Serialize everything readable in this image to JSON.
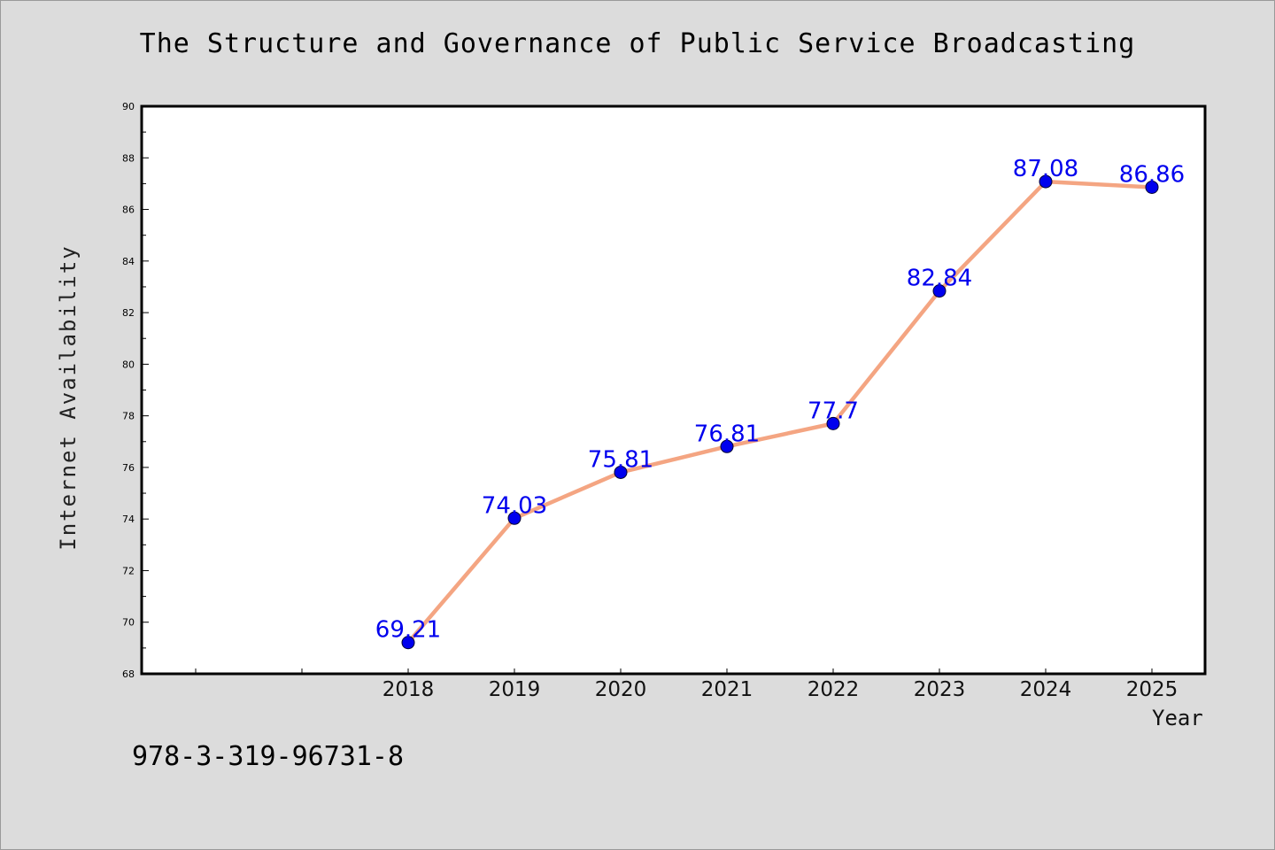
{
  "chart_data": {
    "type": "line",
    "title": "The Structure and Governance of Public Service Broadcasting",
    "xlabel": "Year",
    "ylabel": "Internet Availability",
    "categories": [
      "2018",
      "2019",
      "2020",
      "2021",
      "2022",
      "2023",
      "2024",
      "2025"
    ],
    "series": [
      {
        "values": [
          69.21,
          74.03,
          75.81,
          76.81,
          77.7,
          82.84,
          87.08,
          86.86
        ],
        "data_labels": [
          "69.21",
          "74.03",
          "75.81",
          "76.81",
          "77.7",
          "82.84",
          "87.08",
          "86.86"
        ]
      }
    ],
    "ylim": [
      68,
      90
    ],
    "yticks": [
      "68",
      "70",
      "72",
      "74",
      "76",
      "78",
      "80",
      "82",
      "84",
      "86",
      "88",
      "90"
    ],
    "grid": false,
    "legend": "none",
    "colors": {
      "background": "#dcdcdc",
      "plot_area": "#ffffff",
      "line": "#f4a582",
      "marker": "#0000ee",
      "data_label": "#0000ee"
    }
  },
  "footer": {
    "isbn": "978-3-319-96731-8"
  }
}
